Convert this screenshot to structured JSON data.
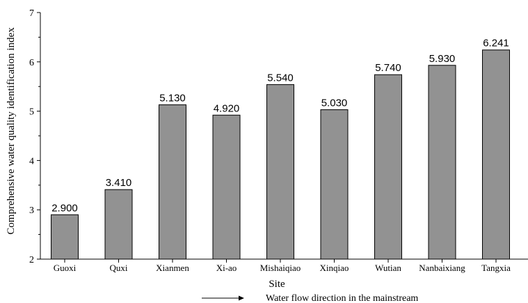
{
  "chart_data": {
    "type": "bar",
    "categories": [
      "Guoxi",
      "Quxi",
      "Xianmen",
      "Xi-ao",
      "Mishaiqiao",
      "Xinqiao",
      "Wutian",
      "Nanbaixiang",
      "Tangxia"
    ],
    "values": [
      2.9,
      3.41,
      5.13,
      4.92,
      5.54,
      5.03,
      5.74,
      5.93,
      6.241
    ],
    "data_labels": [
      "2.900",
      "3.410",
      "5.130",
      "4.920",
      "5.540",
      "5.030",
      "5.740",
      "5.930",
      "6.241"
    ],
    "xlabel": "Site",
    "ylabel": "Comprehensive water quality identification index",
    "ylim": [
      2,
      7
    ],
    "yticks": [
      2,
      3,
      4,
      5,
      6,
      7
    ],
    "grid": false,
    "annotation": "Water flow direction in the mainstream",
    "colors": {
      "bar": "#929292",
      "edge": "#000000"
    }
  }
}
